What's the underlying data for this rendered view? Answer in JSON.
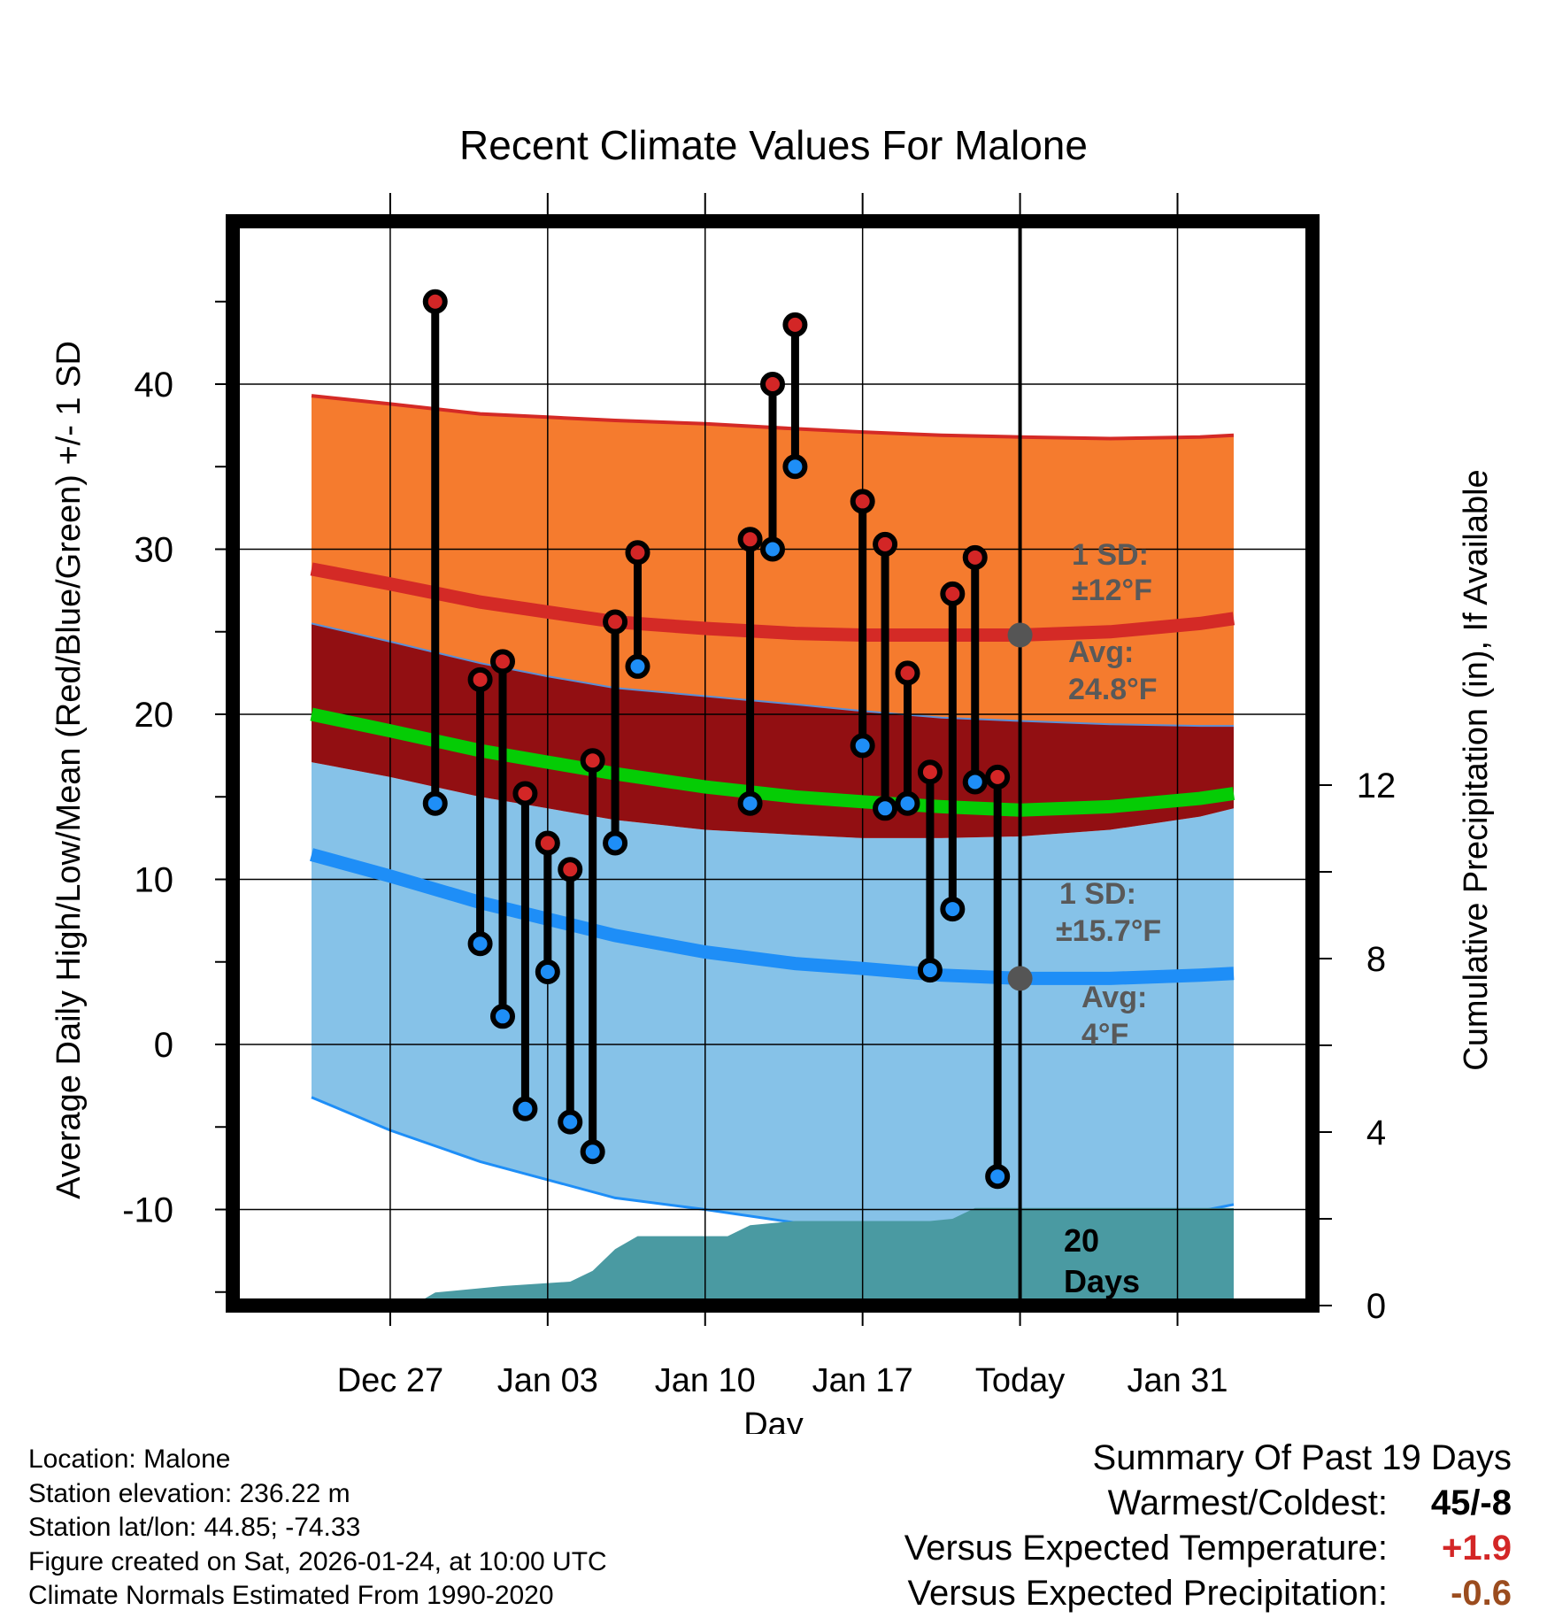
{
  "chart_data": {
    "type": "line",
    "title": "Recent Climate Values For Malone",
    "xlabel": "Day",
    "ylabel": "Average Daily High/Low/Mean (Red/Blue/Green) +/- 1 SD",
    "ylabel_right": "Cumulative Precipitation (in), If Available",
    "x_range_days": [
      -35,
      13
    ],
    "ylim": [
      -16,
      50
    ],
    "y_ticks": [
      -10,
      0,
      10,
      20,
      30,
      40
    ],
    "y2_ticks": [
      {
        "value": 0,
        "label": "0"
      },
      {
        "value": 4,
        "label": "4"
      },
      {
        "value": 8,
        "label": "8"
      },
      {
        "value": 12,
        "label": "12"
      }
    ],
    "y2_range": [
      0,
      24
    ],
    "x_ticks": [
      {
        "day": -28,
        "label": "Dec 27"
      },
      {
        "day": -21,
        "label": "Jan 03"
      },
      {
        "day": -14,
        "label": "Jan 10"
      },
      {
        "day": -7,
        "label": "Jan 17"
      },
      {
        "day": 0,
        "label": "Today"
      },
      {
        "day": 7,
        "label": "Jan 31"
      }
    ],
    "normal_days": [
      -31.5,
      -28,
      -24,
      -21,
      -18,
      -14,
      -10,
      -7,
      -3.5,
      0,
      4,
      8,
      9.5
    ],
    "normal_high": [
      28.8,
      27.9,
      26.8,
      26.2,
      25.6,
      25.2,
      24.9,
      24.8,
      24.8,
      24.8,
      25.0,
      25.5,
      25.8
    ],
    "normal_high_plus_sd": [
      39.3,
      38.8,
      38.2,
      38.0,
      37.8,
      37.6,
      37.3,
      37.1,
      36.9,
      36.8,
      36.7,
      36.8,
      36.9
    ],
    "normal_high_minus_sd": [
      25.5,
      24.4,
      23.1,
      22.3,
      21.6,
      21.1,
      20.6,
      20.2,
      19.8,
      19.6,
      19.4,
      19.3,
      19.3
    ],
    "normal_low": [
      11.5,
      10.2,
      8.6,
      7.6,
      6.6,
      5.6,
      4.9,
      4.6,
      4.2,
      4.0,
      4.0,
      4.2,
      4.3
    ],
    "normal_low_plus_sd": [
      17.1,
      16.2,
      15.0,
      14.3,
      13.6,
      13.0,
      12.7,
      12.5,
      12.5,
      12.6,
      13.0,
      13.8,
      14.3
    ],
    "normal_low_minus_sd": [
      -3.2,
      -5.2,
      -7.1,
      -8.2,
      -9.3,
      -10.0,
      -10.8,
      -11.1,
      -11.2,
      -11.0,
      -10.6,
      -10.1,
      -9.7
    ],
    "normal_mean": [
      20.0,
      19.0,
      17.8,
      17.1,
      16.4,
      15.6,
      15.0,
      14.7,
      14.4,
      14.2,
      14.4,
      14.9,
      15.2
    ],
    "observed_days": [
      -26,
      -24,
      -23,
      -22,
      -21,
      -20,
      -19,
      -18,
      -17,
      -12,
      -11,
      -10,
      -7,
      -6,
      -5,
      -4,
      -3,
      -2,
      -1
    ],
    "observed_high": [
      45,
      22.1,
      23.2,
      15.2,
      12.2,
      10.6,
      17.2,
      25.6,
      29.8,
      30.6,
      40,
      43.6,
      32.9,
      30.3,
      22.5,
      16.5,
      27.3,
      29.5,
      16.2
    ],
    "observed_low": [
      14.6,
      6.1,
      1.7,
      -3.9,
      4.4,
      -4.7,
      -6.5,
      12.2,
      22.9,
      14.6,
      30,
      35,
      18.1,
      14.3,
      14.6,
      4.5,
      8.2,
      15.9,
      -8
    ],
    "precip_days": [
      -31.5,
      -27,
      -26,
      -23,
      -20,
      -19,
      -18,
      -17,
      -15,
      -13,
      -12,
      -10,
      -7,
      -4,
      -3,
      -2,
      0,
      9.5
    ],
    "precip_cumulative": [
      0,
      0,
      0.3,
      0.45,
      0.55,
      0.8,
      1.3,
      1.6,
      1.6,
      1.6,
      1.85,
      1.95,
      1.95,
      1.95,
      2.0,
      2.25,
      2.25,
      2.25
    ],
    "annotations": {
      "high_sd_l1": "1 SD:",
      "high_sd_l2": "±12°F",
      "high_avg_l1": "Avg:",
      "high_avg_l2": "24.8°F",
      "low_sd_l1": "1 SD:",
      "low_sd_l2": "±15.7°F",
      "low_avg_l1": "Avg:",
      "low_avg_l2": "4°F",
      "days_l1": "20",
      "days_l2": "Days"
    }
  },
  "colors": {
    "high_band": "#f57b2e",
    "overlap_band": "#920f12",
    "low_band": "#86c2e8",
    "high_line": "#d42a26",
    "low_line": "#1e8ef7",
    "mean_line": "#05cc05",
    "precip": "#4a9aa2",
    "marker_high": "#d32626",
    "marker_low": "#1e8ef7",
    "annotation": "#595959",
    "summary_temp": "#d32626",
    "summary_precip": "#9b4c1e"
  },
  "info": {
    "location": "Location: Malone",
    "elevation": "Station elevation: 236.22 m",
    "latlon": "Station lat/lon: 44.85; -74.33",
    "created": "Figure created on Sat, 2026-01-24, at 10:00 UTC",
    "normals": "Climate Normals Estimated From 1990-2020"
  },
  "summary": {
    "title": "Summary Of Past 19 Days",
    "warmest_label": "Warmest/Coldest:",
    "warmest_value": "45/-8",
    "temp_label": "Versus Expected Temperature:",
    "temp_value": "+1.9",
    "precip_label": "Versus Expected Precipitation:",
    "precip_value": "-0.6"
  }
}
